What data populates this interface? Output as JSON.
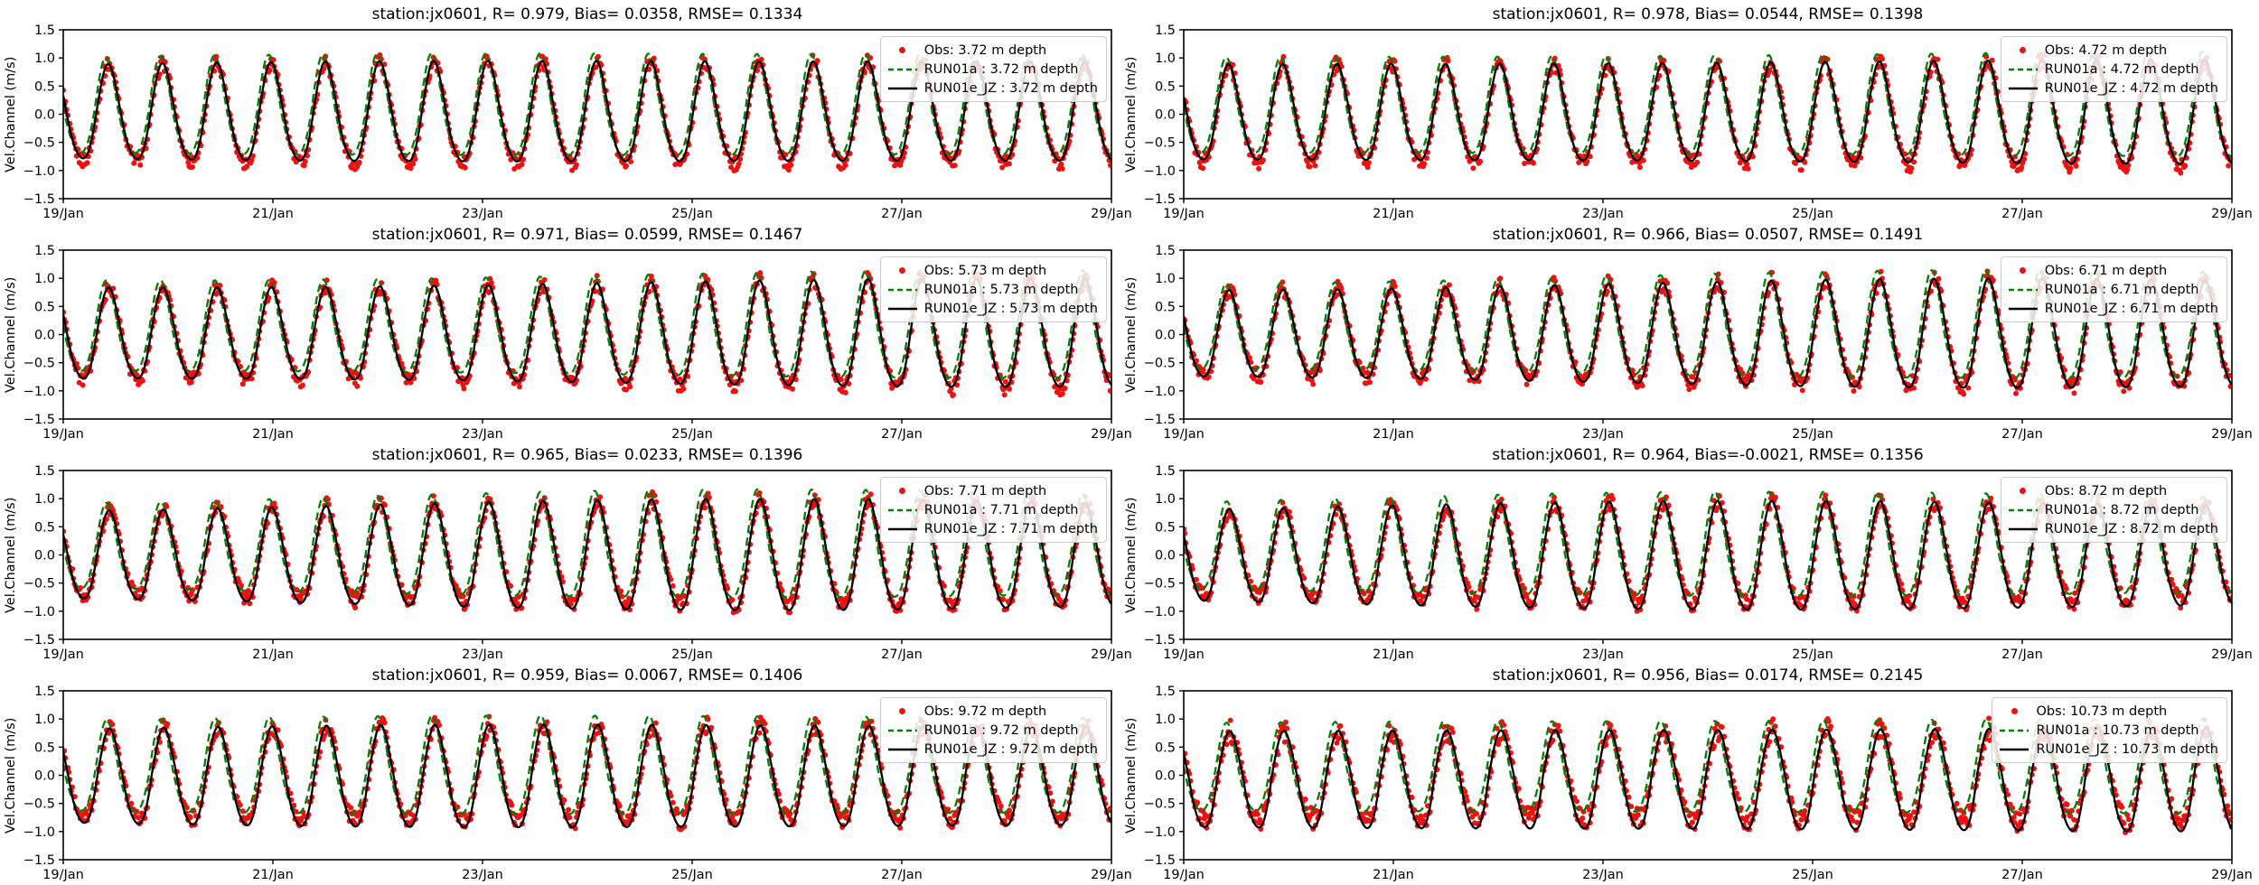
{
  "colors": {
    "background": "#ffffff",
    "axis": "#000000",
    "obs": "#f01010",
    "run01a": "#008000",
    "run01e_jz": "#000000",
    "legend_border": "#cccccc"
  },
  "chart_data": {
    "type": "line",
    "station": "jx0601",
    "ylabel": "Vel.Channel (m/s)",
    "ylim": [
      -1.5,
      1.5
    ],
    "y_ticks": [
      "1.5",
      "1.0",
      "0.5",
      "0.0",
      "−0.5",
      "−1.0",
      "−1.5"
    ],
    "x_ticks": [
      "19/Jan",
      "21/Jan",
      "23/Jan",
      "25/Jan",
      "27/Jan",
      "29/Jan"
    ],
    "x_tick_interval_days": 2,
    "duration_hours": 240,
    "tide_period_hours": 12.42,
    "legend_position": "upper right",
    "grid": false,
    "series_style": [
      {
        "name": "Obs",
        "type": "scatter",
        "color_key": "obs"
      },
      {
        "name": "RUN01a",
        "type": "dashed-line",
        "color_key": "run01a"
      },
      {
        "name": "RUN01e_JZ",
        "type": "solid-line",
        "color_key": "run01e_jz"
      }
    ],
    "subplots": [
      {
        "id": "r1c1",
        "title": "station:jx0601, R= 0.979, Bias= 0.0358, RMSE= 0.1334",
        "R": 0.979,
        "Bias": 0.0358,
        "RMSE": 0.1334,
        "depth_m": 3.72,
        "legend": [
          "Obs: 3.72 m depth",
          "RUN01a : 3.72 m depth",
          "RUN01e_JZ : 3.72 m depth"
        ],
        "synth": {
          "seed": 1,
          "amp": 0.8,
          "phase_h": 7.3,
          "noise": 0.065,
          "green_scale": 1.14,
          "green_lead_h": 0.5,
          "green_trough": 0.85,
          "black_trough": 1.12,
          "obs_trough": 1.18
        }
      },
      {
        "id": "r1c2",
        "title": "station:jx0601, R= 0.978, Bias= 0.0544, RMSE= 0.1398",
        "R": 0.978,
        "Bias": 0.0544,
        "RMSE": 0.1398,
        "depth_m": 4.72,
        "legend": [
          "Obs: 4.72 m depth",
          "RUN01a : 4.72 m depth",
          "RUN01e_JZ : 4.72 m depth"
        ],
        "synth": {
          "seed": 2,
          "amp": 0.8,
          "phase_h": 7.25,
          "noise": 0.07,
          "green_scale": 1.14,
          "green_lead_h": 0.5,
          "green_trough": 0.85,
          "black_trough": 1.15,
          "obs_trough": 1.2
        }
      },
      {
        "id": "r2c1",
        "title": "station:jx0601, R= 0.971, Bias= 0.0599, RMSE= 0.1467",
        "R": 0.971,
        "Bias": 0.0599,
        "RMSE": 0.1467,
        "depth_m": 5.73,
        "legend": [
          "Obs: 5.73 m depth",
          "RUN01a : 5.73 m depth",
          "RUN01e_JZ : 5.73 m depth"
        ],
        "synth": {
          "seed": 3,
          "amp": 0.79,
          "phase_h": 7.4,
          "noise": 0.07,
          "green_scale": 1.15,
          "green_lead_h": 0.55,
          "green_trough": 0.85,
          "black_trough": 1.18,
          "obs_trough": 1.2
        }
      },
      {
        "id": "r2c2",
        "title": "station:jx0601, R= 0.966, Bias= 0.0507, RMSE= 0.1491",
        "R": 0.966,
        "Bias": 0.0507,
        "RMSE": 0.1491,
        "depth_m": 6.71,
        "legend": [
          "Obs: 6.71 m depth",
          "RUN01a : 6.71 m depth",
          "RUN01e_JZ : 6.71 m depth"
        ],
        "synth": {
          "seed": 4,
          "amp": 0.78,
          "phase_h": 7.35,
          "noise": 0.075,
          "green_scale": 1.15,
          "green_lead_h": 0.55,
          "green_trough": 0.85,
          "black_trough": 1.2,
          "obs_trough": 1.18
        }
      },
      {
        "id": "r3c1",
        "title": "station:jx0601, R= 0.965, Bias= 0.0233, RMSE= 0.1396",
        "R": 0.965,
        "Bias": 0.0233,
        "RMSE": 0.1396,
        "depth_m": 7.71,
        "legend": [
          "Obs: 7.71 m depth",
          "RUN01a : 7.71 m depth",
          "RUN01e_JZ : 7.71 m depth"
        ],
        "synth": {
          "seed": 5,
          "amp": 0.78,
          "phase_h": 7.5,
          "noise": 0.07,
          "green_scale": 1.17,
          "green_lead_h": 0.6,
          "green_trough": 0.82,
          "black_trough": 1.25,
          "obs_trough": 1.15
        }
      },
      {
        "id": "r3c2",
        "title": "station:jx0601, R= 0.964, Bias=-0.0021, RMSE= 0.1356",
        "R": 0.964,
        "Bias": -0.0021,
        "RMSE": 0.1356,
        "depth_m": 8.72,
        "legend": [
          "Obs: 8.72 m depth",
          "RUN01a : 8.72 m depth",
          "RUN01e_JZ : 8.72 m depth"
        ],
        "synth": {
          "seed": 6,
          "amp": 0.77,
          "phase_h": 7.45,
          "noise": 0.075,
          "green_scale": 1.17,
          "green_lead_h": 0.6,
          "green_trough": 0.82,
          "black_trough": 1.28,
          "obs_trough": 1.15
        }
      },
      {
        "id": "r4c1",
        "title": "station:jx0601, R= 0.959, Bias= 0.0067, RMSE= 0.1406",
        "R": 0.959,
        "Bias": 0.0067,
        "RMSE": 0.1406,
        "depth_m": 9.72,
        "legend": [
          "Obs: 9.72 m depth",
          "RUN01a : 9.72 m depth",
          "RUN01e_JZ : 9.72 m depth"
        ],
        "synth": {
          "seed": 7,
          "amp": 0.75,
          "phase_h": 7.6,
          "noise": 0.08,
          "green_scale": 1.18,
          "green_lead_h": 0.65,
          "green_trough": 0.82,
          "black_trough": 1.3,
          "obs_trough": 1.15
        }
      },
      {
        "id": "r4c2",
        "title": "station:jx0601, R= 0.956, Bias= 0.0174, RMSE= 0.2145",
        "R": 0.956,
        "Bias": 0.0174,
        "RMSE": 0.2145,
        "depth_m": 10.73,
        "legend": [
          "Obs: 10.73 m depth",
          "RUN01a : 10.73 m depth",
          "RUN01e_JZ : 10.73 m depth"
        ],
        "synth": {
          "seed": 8,
          "amp": 0.7,
          "phase_h": 7.55,
          "noise": 0.1,
          "green_scale": 1.2,
          "green_lead_h": 0.7,
          "green_trough": 0.85,
          "black_trough": 1.5,
          "obs_trough": 1.25
        }
      }
    ]
  }
}
